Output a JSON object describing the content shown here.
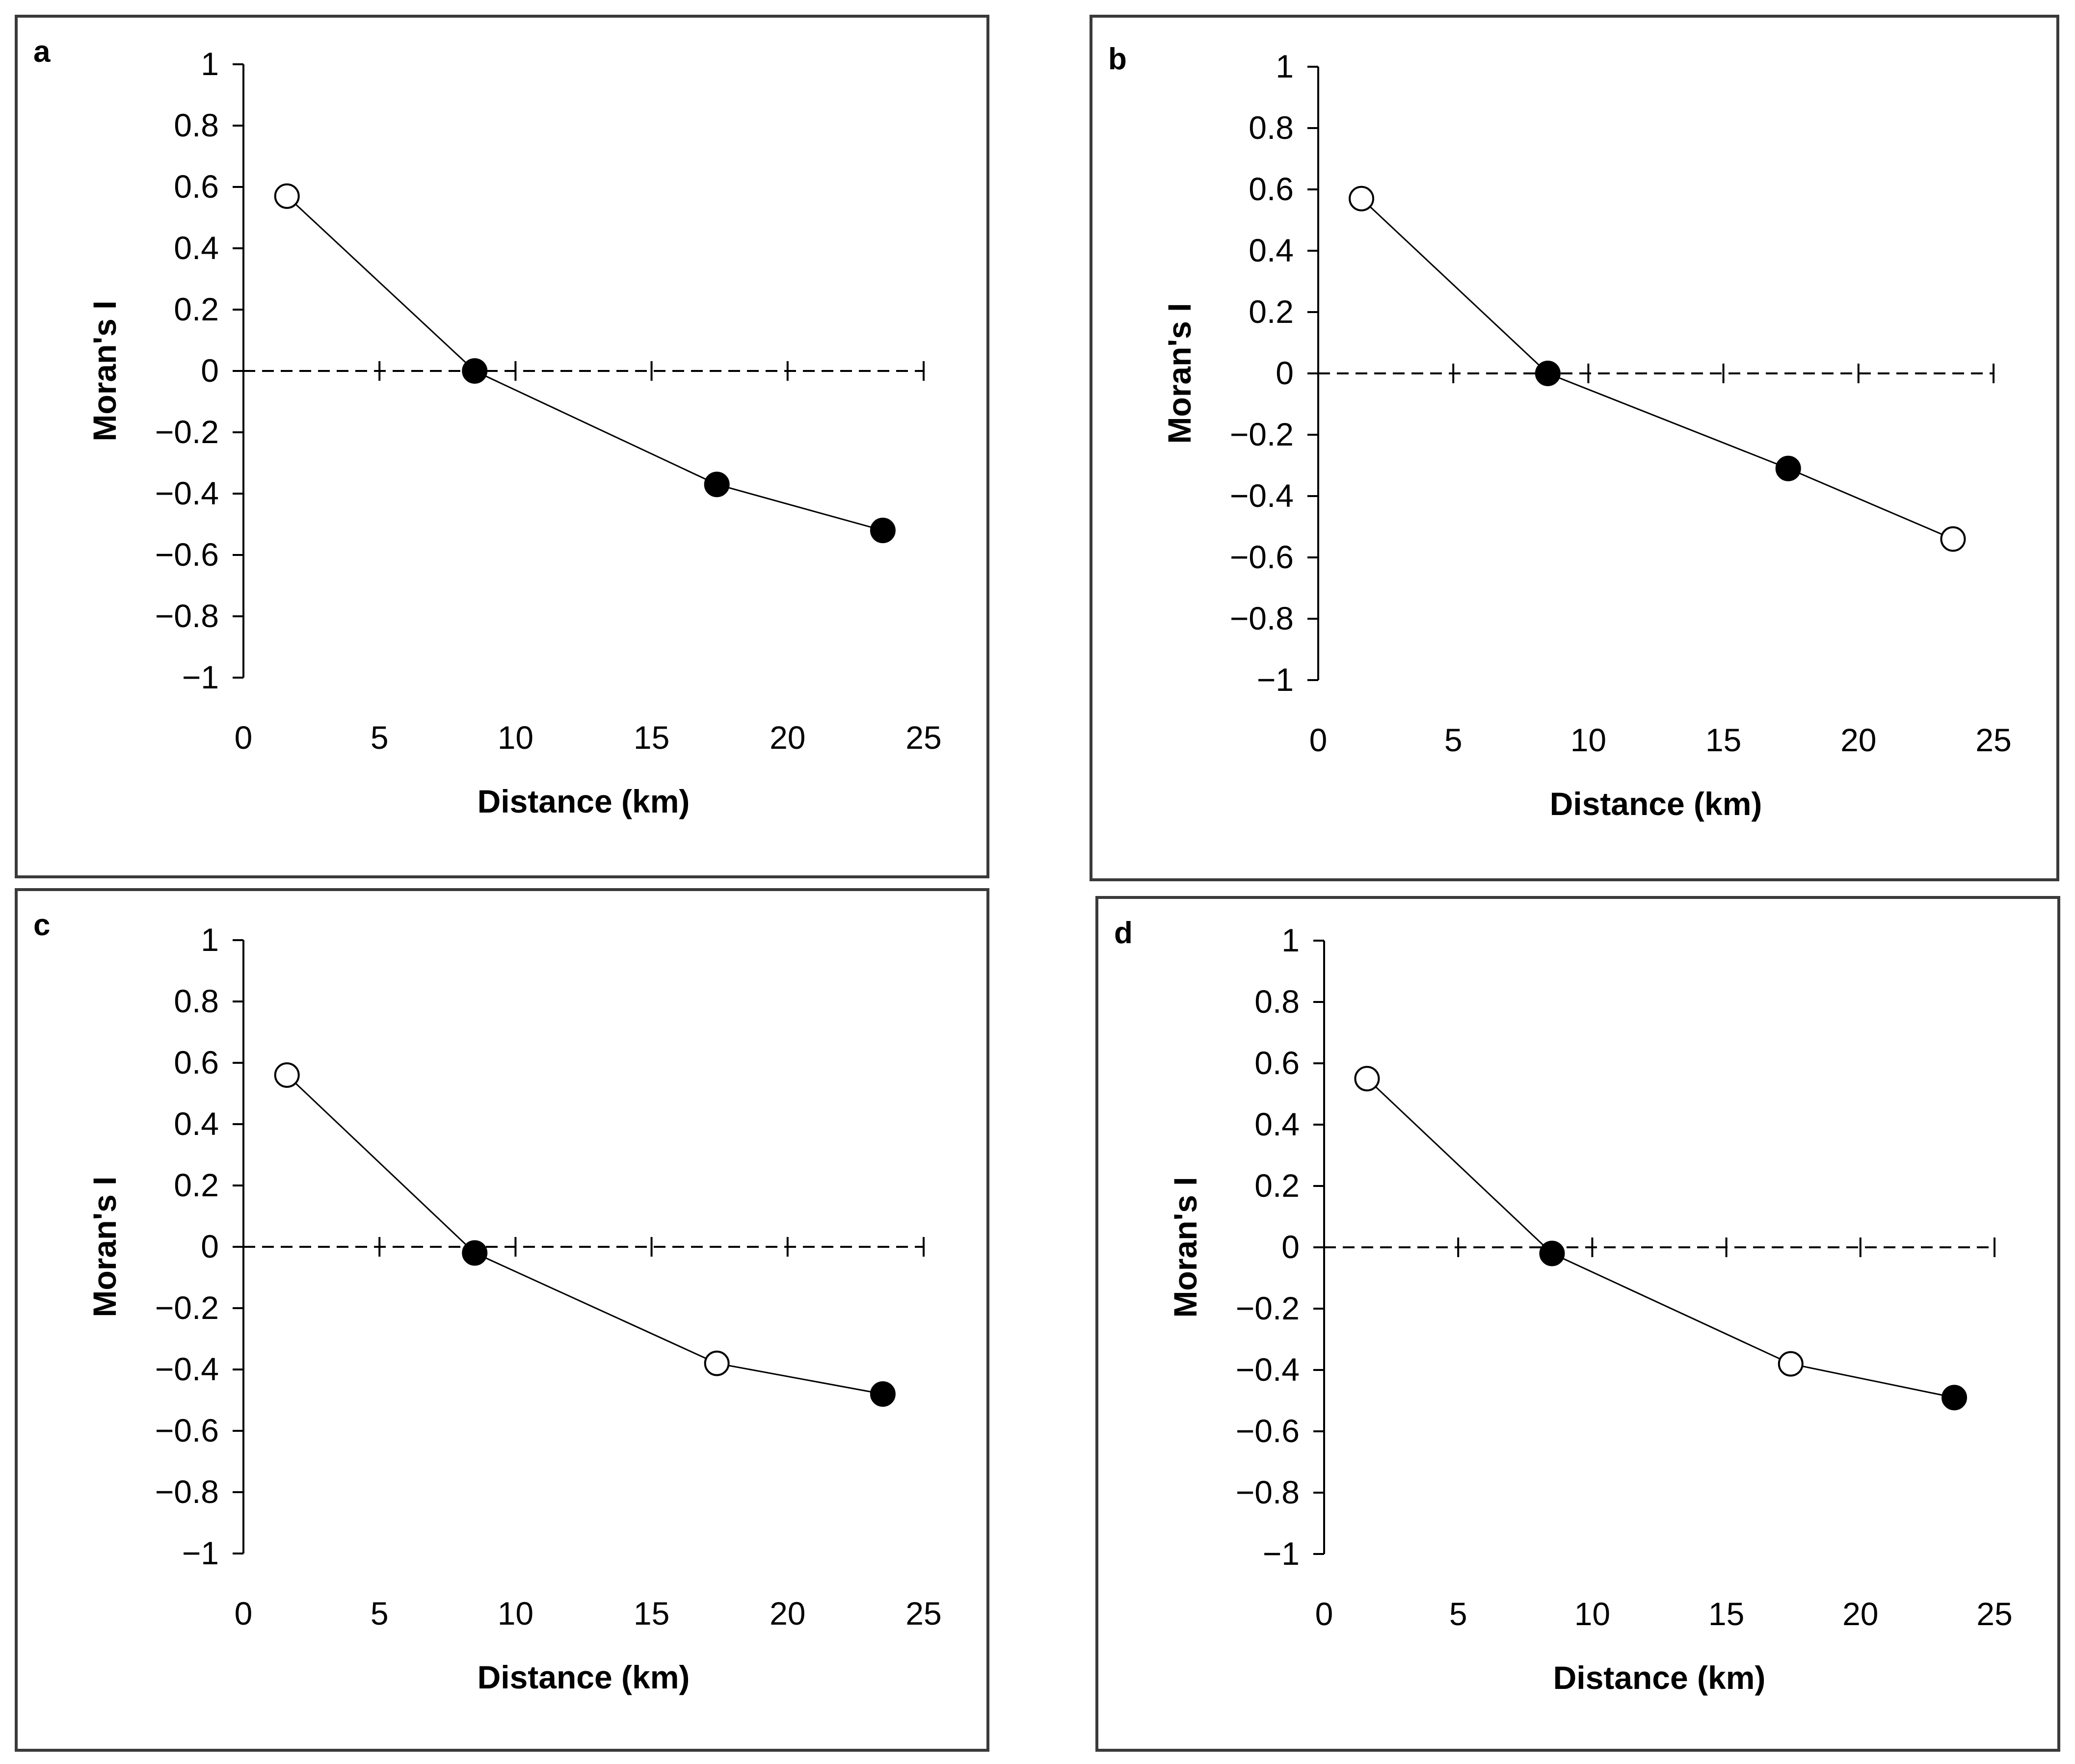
{
  "chart_data": [
    {
      "panel": "a",
      "type": "line",
      "xlabel": "Distance (km)",
      "ylabel": "Moran's I",
      "xlim": [
        0,
        25
      ],
      "ylim": [
        -1,
        1
      ],
      "xticks": [
        "0",
        "5",
        "10",
        "15",
        "20",
        "25"
      ],
      "yticks": [
        "1",
        "0.8",
        "0.6",
        "0.4",
        "0.2",
        "0",
        "-0.2",
        "-0.4",
        "-0.6",
        "-0.8",
        "-1"
      ],
      "reference_line": 0,
      "points": [
        {
          "x": 1.6,
          "y": 0.57,
          "significant": false
        },
        {
          "x": 8.5,
          "y": 0.0,
          "significant": true
        },
        {
          "x": 17.4,
          "y": -0.37,
          "significant": true
        },
        {
          "x": 23.5,
          "y": -0.52,
          "significant": true
        }
      ]
    },
    {
      "panel": "b",
      "type": "line",
      "xlabel": "Distance (km)",
      "ylabel": "Moran's I",
      "xlim": [
        0,
        25
      ],
      "ylim": [
        -1,
        1
      ],
      "xticks": [
        "0",
        "5",
        "10",
        "15",
        "20",
        "25"
      ],
      "yticks": [
        "1",
        "0.8",
        "0.6",
        "0.4",
        "0.2",
        "0",
        "-0.2",
        "-0.4",
        "-0.6",
        "-0.8",
        "-1"
      ],
      "reference_line": 0,
      "points": [
        {
          "x": 1.6,
          "y": 0.57,
          "significant": false
        },
        {
          "x": 8.5,
          "y": 0.0,
          "significant": true
        },
        {
          "x": 17.4,
          "y": -0.31,
          "significant": true
        },
        {
          "x": 23.5,
          "y": -0.54,
          "significant": false
        }
      ]
    },
    {
      "panel": "c",
      "type": "line",
      "xlabel": "Distance (km)",
      "ylabel": "Moran's I",
      "xlim": [
        0,
        25
      ],
      "ylim": [
        -1,
        1
      ],
      "xticks": [
        "0",
        "5",
        "10",
        "15",
        "20",
        "25"
      ],
      "yticks": [
        "1",
        "0.8",
        "0.6",
        "0.4",
        "0.2",
        "0",
        "-0.2",
        "-0.4",
        "-0.6",
        "-0.8",
        "-1"
      ],
      "reference_line": 0,
      "points": [
        {
          "x": 1.6,
          "y": 0.56,
          "significant": false
        },
        {
          "x": 8.5,
          "y": -0.02,
          "significant": true
        },
        {
          "x": 17.4,
          "y": -0.38,
          "significant": false
        },
        {
          "x": 23.5,
          "y": -0.48,
          "significant": true
        }
      ]
    },
    {
      "panel": "d",
      "type": "line",
      "xlabel": "Distance (km)",
      "ylabel": "Moran's I",
      "xlim": [
        0,
        25
      ],
      "ylim": [
        -1,
        1
      ],
      "xticks": [
        "0",
        "5",
        "10",
        "15",
        "20",
        "25"
      ],
      "yticks": [
        "1",
        "0.8",
        "0.6",
        "0.4",
        "0.2",
        "0",
        "-0.2",
        "-0.4",
        "-0.6",
        "-0.8",
        "-1"
      ],
      "reference_line": 0,
      "points": [
        {
          "x": 1.6,
          "y": 0.55,
          "significant": false
        },
        {
          "x": 8.5,
          "y": -0.02,
          "significant": true
        },
        {
          "x": 17.4,
          "y": -0.38,
          "significant": false
        },
        {
          "x": 23.5,
          "y": -0.49,
          "significant": true
        }
      ]
    }
  ]
}
